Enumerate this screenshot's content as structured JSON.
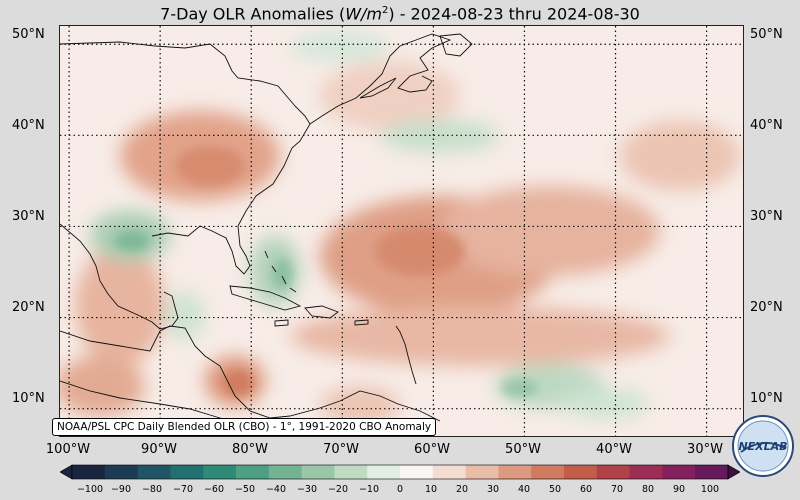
{
  "map": {
    "title_prefix": "7-Day OLR Anomalies (",
    "title_unit_base": "W/m",
    "title_unit_exp": "2",
    "title_suffix": ") - 2024-08-23 thru 2024-08-30",
    "lat_labels": [
      "50°N",
      "40°N",
      "30°N",
      "20°N",
      "10°N"
    ],
    "lat_values": [
      50,
      40,
      30,
      20,
      10
    ],
    "lon_labels": [
      "100°W",
      "90°W",
      "80°W",
      "70°W",
      "60°W",
      "50°W",
      "40°W",
      "30°W"
    ],
    "lon_values": [
      -100,
      -90,
      -80,
      -70,
      -60,
      -50,
      -40,
      -30
    ],
    "extent": {
      "lon_min": -101,
      "lon_max": -26,
      "lat_min": 7,
      "lat_max": 52
    },
    "source_note": "NOAA/PSL CPC Daily Blended OLR (CBO) - 1°, 1991-2020 CBO Anomaly",
    "colorbar_ticks": [
      "−100",
      "−90",
      "−80",
      "−70",
      "−60",
      "−50",
      "−40",
      "−30",
      "−20",
      "−10",
      "0",
      "10",
      "20",
      "30",
      "40",
      "50",
      "60",
      "70",
      "80",
      "90",
      "100"
    ],
    "colorbar_values": [
      -100,
      -90,
      -80,
      -70,
      -60,
      -50,
      -40,
      -30,
      -20,
      -10,
      0,
      10,
      20,
      30,
      40,
      50,
      60,
      70,
      80,
      90,
      100
    ],
    "colorbar_colors": [
      "#1b2540",
      "#1d3a55",
      "#1f5566",
      "#237070",
      "#2f8a78",
      "#4f9f85",
      "#74b294",
      "#9ac6a8",
      "#bfdbc4",
      "#e2eee4",
      "#faf6f3",
      "#f3ddd3",
      "#e9bca8",
      "#de9a80",
      "#d07a60",
      "#c25d4a",
      "#b1424a",
      "#9c2d55",
      "#85205f",
      "#661a5c",
      "#3e1240"
    ],
    "logo_text": "NEXLAB"
  }
}
